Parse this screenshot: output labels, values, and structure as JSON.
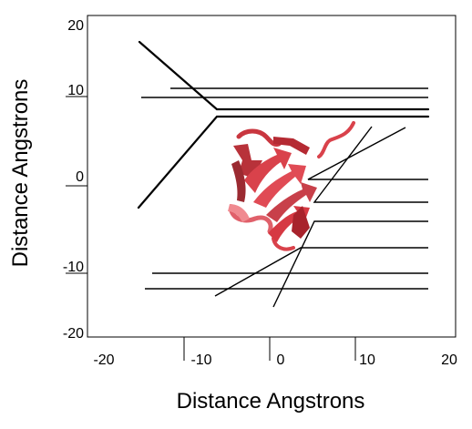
{
  "diagram": {
    "xlabel": "Distance Angstrons",
    "ylabel": "Distance Angstrons",
    "x_ticks": [
      {
        "value": -20,
        "label": "-20"
      },
      {
        "value": -10,
        "label": "-10"
      },
      {
        "value": 0,
        "label": "0"
      },
      {
        "value": 10,
        "label": "10"
      },
      {
        "value": 20,
        "label": "20"
      }
    ],
    "y_ticks": [
      {
        "value": 20,
        "label": "20"
      },
      {
        "value": 10,
        "label": "10"
      },
      {
        "value": 0,
        "label": "0"
      },
      {
        "value": -10,
        "label": "-10"
      },
      {
        "value": -20,
        "label": "-20"
      }
    ],
    "colors": {
      "frame": "#000000",
      "lines": "#000000",
      "protein": "#d9424b",
      "protein_dark": "#8e1f27",
      "protein_light": "#f08a90"
    }
  }
}
